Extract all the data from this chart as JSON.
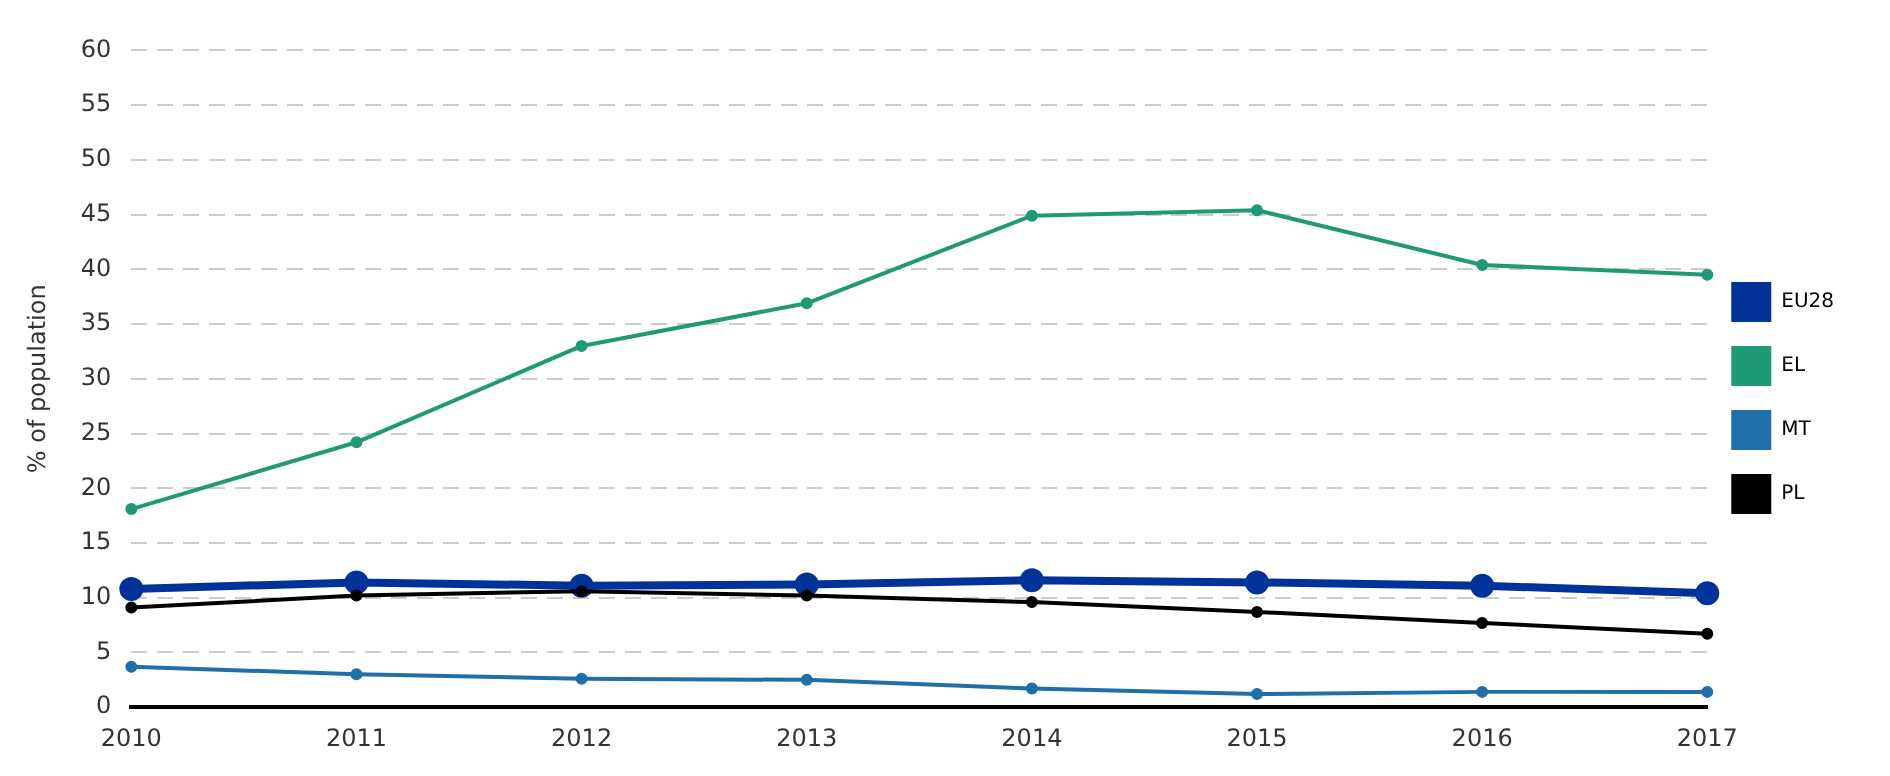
{
  "chart_data": {
    "type": "line",
    "ylabel": "% of population",
    "categories": [
      "2010",
      "2011",
      "2012",
      "2013",
      "2014",
      "2015",
      "2016",
      "2017"
    ],
    "series": [
      {
        "name": "EU28",
        "color": "#003399",
        "values": [
          10.8,
          11.4,
          11.1,
          11.2,
          11.6,
          11.4,
          11.1,
          10.4
        ]
      },
      {
        "name": "EL",
        "color": "#1f9a77",
        "values": [
          18.1,
          24.2,
          33.0,
          36.9,
          44.9,
          45.4,
          40.4,
          39.5
        ]
      },
      {
        "name": "MT",
        "color": "#1f6fa8",
        "values": [
          3.7,
          3.0,
          2.6,
          2.5,
          1.7,
          1.2,
          1.4,
          1.4
        ]
      },
      {
        "name": "PL",
        "color": "#000000",
        "values": [
          9.1,
          10.2,
          10.6,
          10.2,
          9.6,
          8.7,
          7.7,
          6.7
        ]
      }
    ],
    "ylim": [
      0,
      60
    ],
    "yticks": [
      0,
      5,
      10,
      15,
      20,
      25,
      30,
      35,
      40,
      45,
      50,
      55,
      60
    ],
    "grid": "y",
    "legend": "right",
    "marker": "circle",
    "line_style": "solid"
  }
}
